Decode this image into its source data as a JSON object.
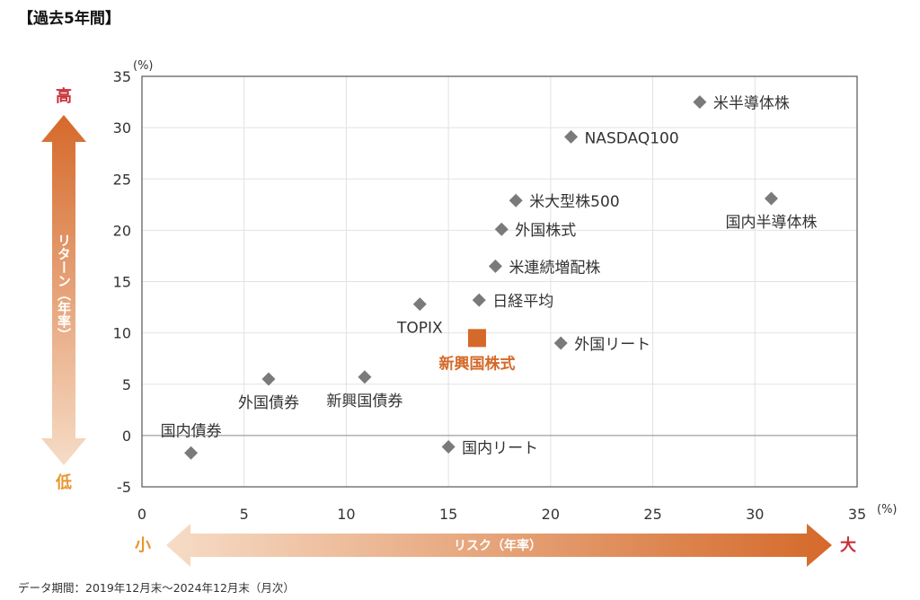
{
  "title": "【過去5年間】",
  "footnote": "データ期間：2019年12月末～2024年12月末（月次）",
  "y_arrow": {
    "top_label": "高",
    "bottom_label": "低",
    "text": "リターン（年率）"
  },
  "x_arrow": {
    "left_label": "小",
    "right_label": "大",
    "text": "リスク（年率）"
  },
  "colors": {
    "marker": "#7a7a7a",
    "highlight": "#d5692a",
    "grid": "#e2e2e2",
    "frame": "#555555",
    "zero_line": "#888888",
    "arrow_dark": "#d5692a",
    "arrow_light": "#f5d8c0",
    "label_high": "#c8313b",
    "label_low": "#e8962f"
  },
  "chart_data": {
    "type": "scatter",
    "xlabel": "リスク（年率）",
    "ylabel": "リターン（年率）",
    "x_unit": "(%)",
    "y_unit": "(%)",
    "xlim": [
      0,
      35
    ],
    "ylim": [
      -5,
      35
    ],
    "x_ticks": [
      "0",
      "5",
      "10",
      "15",
      "20",
      "25",
      "30",
      "35"
    ],
    "y_ticks": [
      "-5",
      "0",
      "5",
      "10",
      "15",
      "20",
      "25",
      "30",
      "35"
    ],
    "grid": true,
    "points": [
      {
        "name": "米半導体株",
        "x": 27.3,
        "y": 32.5,
        "label_pos": "right"
      },
      {
        "name": "NASDAQ100",
        "x": 21.0,
        "y": 29.1,
        "label_pos": "right"
      },
      {
        "name": "米大型株500",
        "x": 18.3,
        "y": 22.9,
        "label_pos": "right"
      },
      {
        "name": "国内半導体株",
        "x": 30.8,
        "y": 23.1,
        "label_pos": "below"
      },
      {
        "name": "外国株式",
        "x": 17.6,
        "y": 20.1,
        "label_pos": "right"
      },
      {
        "name": "米連続増配株",
        "x": 17.3,
        "y": 16.5,
        "label_pos": "right"
      },
      {
        "name": "日経平均",
        "x": 16.5,
        "y": 13.2,
        "label_pos": "right"
      },
      {
        "name": "TOPIX",
        "x": 13.6,
        "y": 12.8,
        "label_pos": "below"
      },
      {
        "name": "外国リート",
        "x": 20.5,
        "y": 9.0,
        "label_pos": "right"
      },
      {
        "name": "新興国株式",
        "x": 16.4,
        "y": 9.5,
        "label_pos": "below",
        "highlight": true
      },
      {
        "name": "外国債券",
        "x": 6.2,
        "y": 5.5,
        "label_pos": "below"
      },
      {
        "name": "新興国債券",
        "x": 10.9,
        "y": 5.7,
        "label_pos": "below"
      },
      {
        "name": "国内債券",
        "x": 2.4,
        "y": -1.7,
        "label_pos": "above"
      },
      {
        "name": "国内リート",
        "x": 15.0,
        "y": -1.1,
        "label_pos": "right"
      }
    ]
  }
}
